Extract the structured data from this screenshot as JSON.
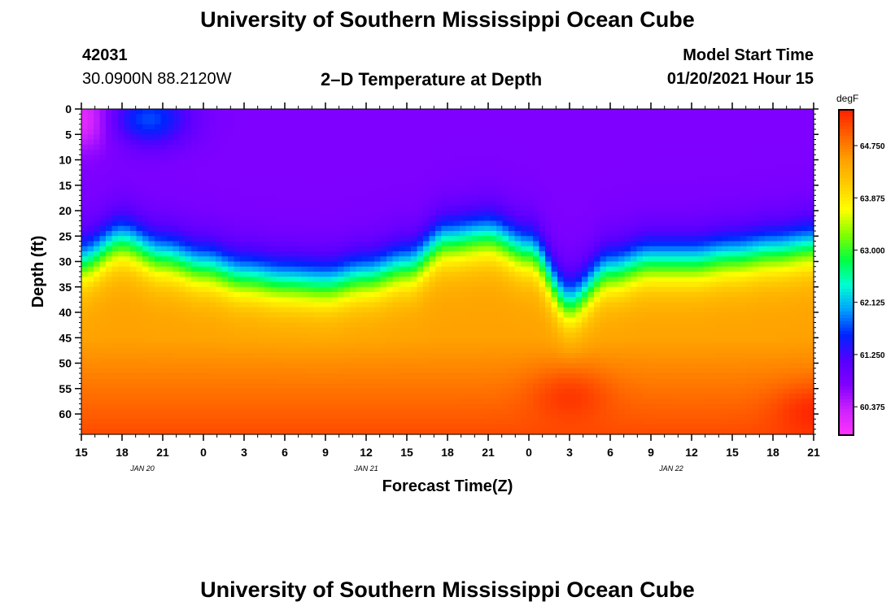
{
  "header": {
    "title_top": "University of Southern Mississippi Ocean Cube",
    "title_bottom": "University of Southern Mississippi Ocean Cube",
    "station_id": "42031",
    "coordinates": "30.0900N 88.2120W",
    "plot_title": "2–D Temperature at Depth",
    "model_start_label": "Model Start Time",
    "model_start_value": "01/20/2021 Hour 15"
  },
  "chart_data": {
    "type": "heatmap",
    "title": "2–D Temperature at Depth",
    "xlabel": "Forecast Time(Z)",
    "ylabel": "Depth (ft)",
    "units": "degF",
    "x_tick_labels": [
      "15",
      "18",
      "21",
      "0",
      "3",
      "6",
      "9",
      "12",
      "15",
      "18",
      "21",
      "0",
      "3",
      "6",
      "9",
      "12",
      "15",
      "18",
      "21"
    ],
    "x_range_hours": [
      0,
      54
    ],
    "day_labels": [
      {
        "label": "JAN  20",
        "hour": 4.5
      },
      {
        "label": "JAN  21",
        "hour": 21
      },
      {
        "label": "JAN  22",
        "hour": 43.5
      }
    ],
    "y_tick_labels": [
      "0",
      "5",
      "10",
      "15",
      "20",
      "25",
      "30",
      "35",
      "40",
      "45",
      "50",
      "55",
      "60"
    ],
    "y_range_ft": [
      0,
      64
    ],
    "colorbar": {
      "ticks": [
        "64.750",
        "63.875",
        "63.000",
        "62.125",
        "61.250",
        "60.375"
      ],
      "tick_values": [
        64.75,
        63.875,
        63.0,
        62.125,
        61.25,
        60.375
      ],
      "min": 59.9,
      "max": 65.35,
      "colors": [
        "#ff33ff",
        "#cc22ff",
        "#8000ff",
        "#5500ff",
        "#0022ff",
        "#00a0ff",
        "#00ffd0",
        "#00ff40",
        "#80ff00",
        "#ffff00",
        "#ffcc00",
        "#ffa000",
        "#ff6000",
        "#ff2000"
      ]
    },
    "thermocline_depth_ft": [
      {
        "hour": 0,
        "depth": 26
      },
      {
        "hour": 3,
        "depth": 22
      },
      {
        "hour": 6,
        "depth": 25
      },
      {
        "hour": 9,
        "depth": 27
      },
      {
        "hour": 12,
        "depth": 29
      },
      {
        "hour": 15,
        "depth": 30
      },
      {
        "hour": 18,
        "depth": 30.5
      },
      {
        "hour": 21,
        "depth": 29
      },
      {
        "hour": 24,
        "depth": 27
      },
      {
        "hour": 27,
        "depth": 22
      },
      {
        "hour": 30,
        "depth": 21
      },
      {
        "hour": 33,
        "depth": 24
      },
      {
        "hour": 36,
        "depth": 34
      },
      {
        "hour": 39,
        "depth": 28
      },
      {
        "hour": 42,
        "depth": 26
      },
      {
        "hour": 45,
        "depth": 26
      },
      {
        "hour": 48,
        "depth": 25
      },
      {
        "hour": 51,
        "depth": 24
      },
      {
        "hour": 54,
        "depth": 23
      }
    ],
    "features": [
      {
        "name": "surface-cold-spot",
        "hour": 0,
        "depth": 2,
        "value": 60.0
      },
      {
        "name": "surface-blue-patch",
        "hour": 5,
        "depth": 2,
        "value": 61.7
      },
      {
        "name": "bottom-warm-spot",
        "hour": 36,
        "depth": 57,
        "value": 65.2
      },
      {
        "name": "bottom-warm-corner",
        "hour": 54,
        "depth": 60,
        "value": 65.3
      }
    ]
  }
}
